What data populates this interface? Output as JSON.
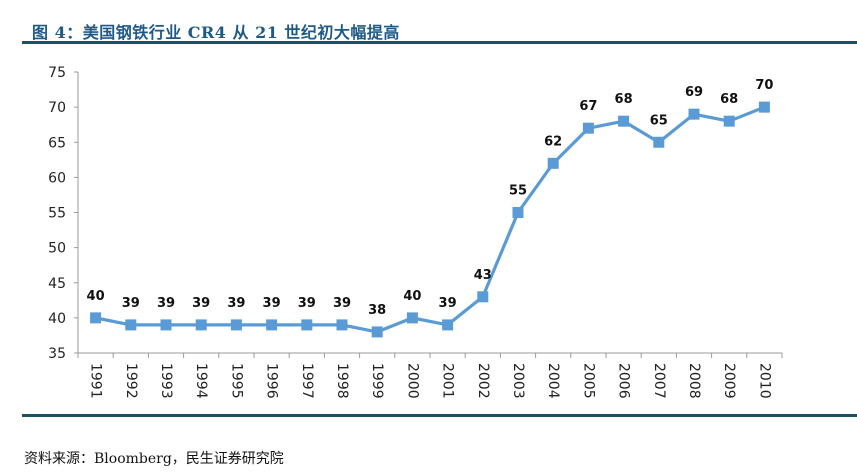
{
  "header": {
    "title": "图 4：美国钢铁行业 CR4 从 21 世纪初大幅提高"
  },
  "footer": {
    "source": "资料来源：Bloomberg，民生证券研究院"
  },
  "chart_data": {
    "type": "line",
    "title": "图 4：美国钢铁行业 CR4 从 21 世纪初大幅提高",
    "xlabel": "",
    "ylabel": "",
    "categories": [
      "1991",
      "1992",
      "1993",
      "1994",
      "1995",
      "1996",
      "1997",
      "1998",
      "1999",
      "2000",
      "2001",
      "2002",
      "2003",
      "2004",
      "2005",
      "2006",
      "2007",
      "2008",
      "2009",
      "2010"
    ],
    "series": [
      {
        "name": "CR4",
        "values": [
          40,
          39,
          39,
          39,
          39,
          39,
          39,
          39,
          38,
          40,
          39,
          43,
          55,
          62,
          67,
          68,
          65,
          69,
          68,
          70
        ]
      }
    ],
    "ylim": [
      35,
      75
    ],
    "yticks": [
      35,
      40,
      45,
      50,
      55,
      60,
      65,
      70,
      75
    ],
    "grid": false,
    "legend": "none",
    "data_labels": true,
    "colors": {
      "line": "#5b9bd5",
      "marker": "#5b9bd5"
    }
  }
}
